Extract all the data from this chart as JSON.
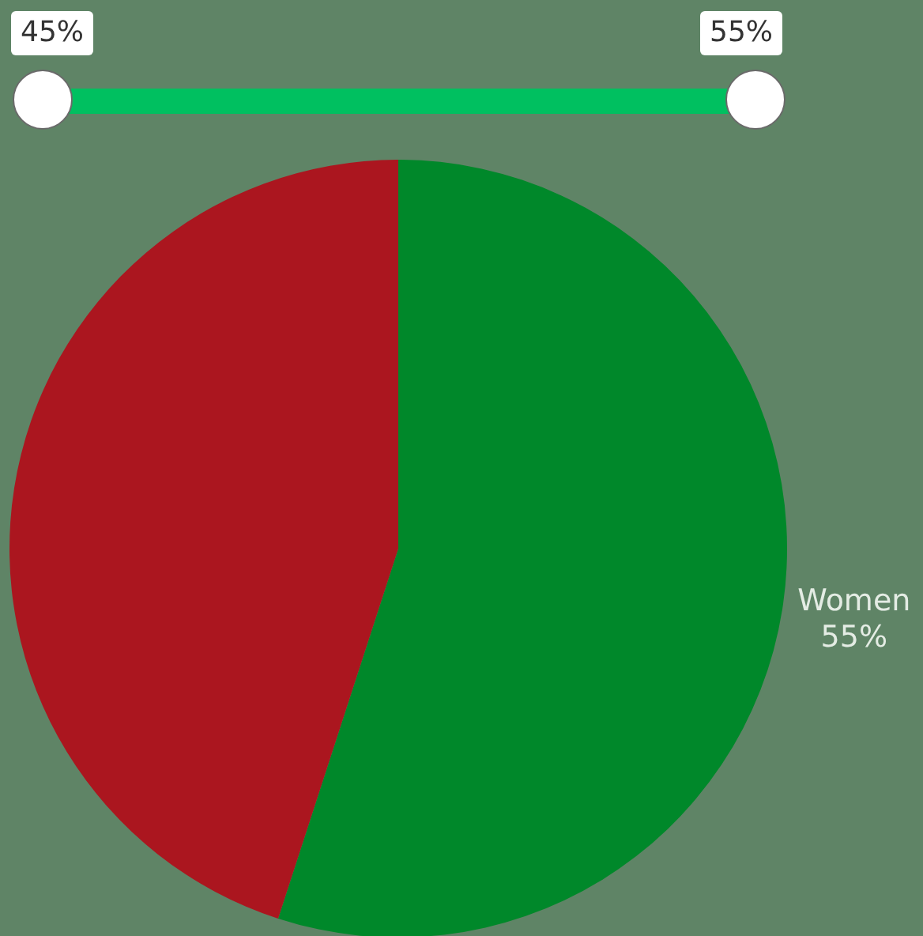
{
  "chart_data": {
    "type": "pie",
    "categories": [
      "Women",
      null
    ],
    "values": [
      55,
      45
    ],
    "colors": [
      "#00882a",
      "#ab161f"
    ],
    "value_labels": [
      "55%",
      null
    ],
    "annotations": [
      "45%",
      "55%"
    ],
    "legend": false
  }
}
